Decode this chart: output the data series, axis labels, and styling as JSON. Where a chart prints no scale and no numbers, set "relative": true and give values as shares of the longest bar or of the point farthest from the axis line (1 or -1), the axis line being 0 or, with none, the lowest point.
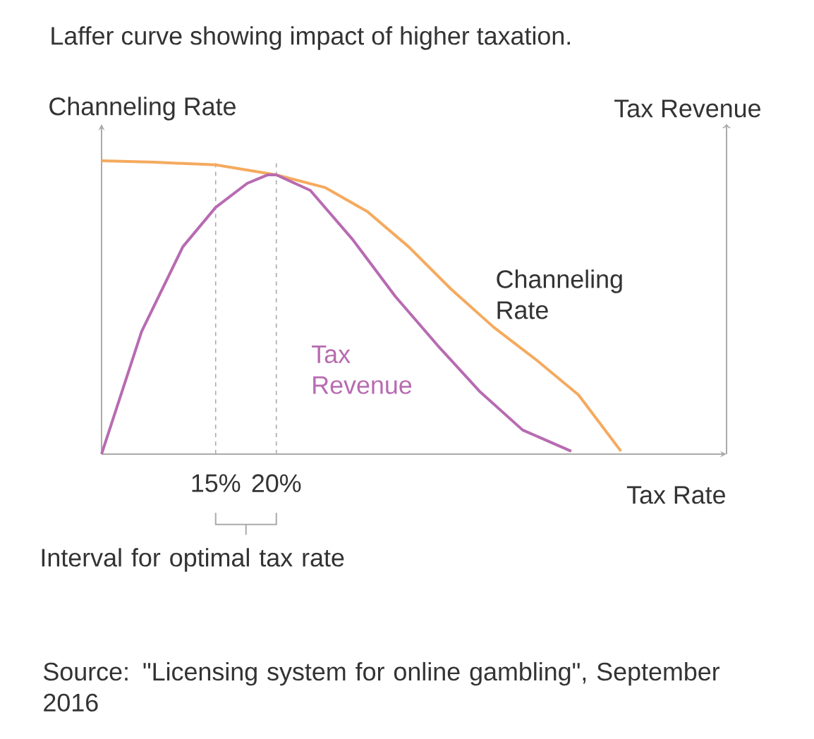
{
  "chart_data": {
    "type": "line",
    "title": "Laffer curve showing impact of higher taxation.",
    "xlabel": "Tax Rate",
    "ylabel": "Channeling Rate",
    "y2label": "Tax Revenue",
    "relative": true,
    "xlim": [
      5.6,
      57.1
    ],
    "xticks": [
      {
        "value": 15,
        "label": "15%"
      },
      {
        "value": 20,
        "label": "20%"
      }
    ],
    "series": [
      {
        "name": "Channeling Rate",
        "color": "#f5aa5e",
        "x": [
          5.6,
          10.0,
          15.0,
          20.0,
          24.0,
          27.5,
          30.9,
          34.4,
          37.9,
          41.4,
          44.9,
          48.4
        ],
        "values": [
          1.0,
          0.995,
          0.986,
          0.952,
          0.909,
          0.827,
          0.707,
          0.5625,
          0.433,
          0.322,
          0.202,
          0.01
        ]
      },
      {
        "name": "Tax Revenue",
        "color": "#b76bb1",
        "x": [
          5.6,
          8.9,
          12.3,
          15.0,
          17.6,
          19.3,
          20.0,
          22.8,
          26.3,
          29.8,
          33.3,
          36.8,
          40.3,
          44.3
        ],
        "values": [
          0,
          0.418,
          0.707,
          0.841,
          0.923,
          0.952,
          0.952,
          0.899,
          0.731,
          0.538,
          0.37,
          0.212,
          0.082,
          0.01
        ]
      }
    ],
    "ref_lines": [
      {
        "axis": "x",
        "value": 15,
        "color": "#aaaaaa",
        "line_style": "dashed"
      },
      {
        "axis": "x",
        "value": 20,
        "color": "#aaaaaa",
        "line_style": "dashed"
      }
    ],
    "annotations": [
      "Interval for optimal tax rate",
      "Source: \"Licensing system for online gambling\", September 2016"
    ]
  }
}
